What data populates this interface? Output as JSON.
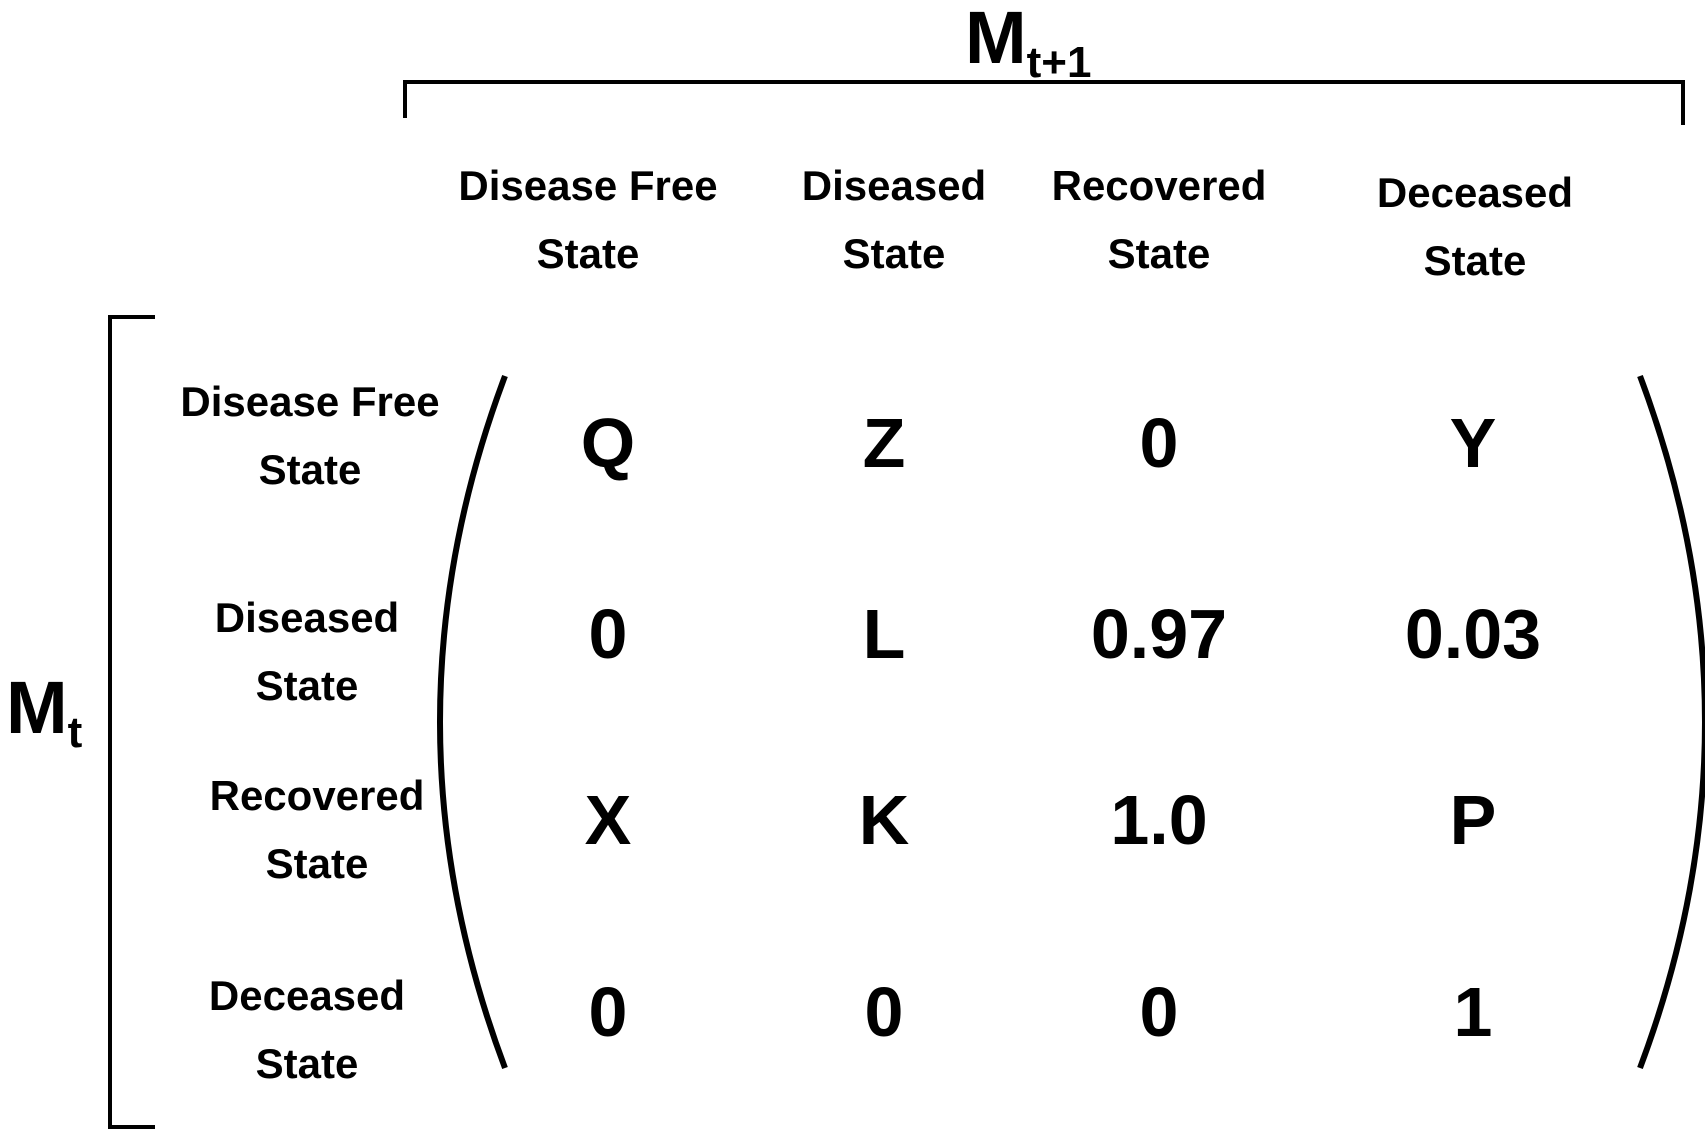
{
  "top_label": {
    "main": "M",
    "sub": "t+1"
  },
  "side_label": {
    "main": "M",
    "sub": "t"
  },
  "column_headers": [
    {
      "line1": "Disease Free",
      "line2": "State"
    },
    {
      "line1": "Diseased",
      "line2": "State"
    },
    {
      "line1": "Recovered",
      "line2": "State"
    },
    {
      "line1": "Deceased",
      "line2": "State"
    }
  ],
  "row_headers": [
    {
      "line1": "Disease Free",
      "line2": "State"
    },
    {
      "line1": "Diseased",
      "line2": "State"
    },
    {
      "line1": "Recovered",
      "line2": "State"
    },
    {
      "line1": "Deceased",
      "line2": "State"
    }
  ],
  "matrix": [
    [
      "Q",
      "Z",
      "0",
      "Y"
    ],
    [
      "0",
      "L",
      "0.97",
      "0.03"
    ],
    [
      "X",
      "K",
      "1.0",
      "P"
    ],
    [
      "0",
      "0",
      "0",
      "1"
    ]
  ]
}
